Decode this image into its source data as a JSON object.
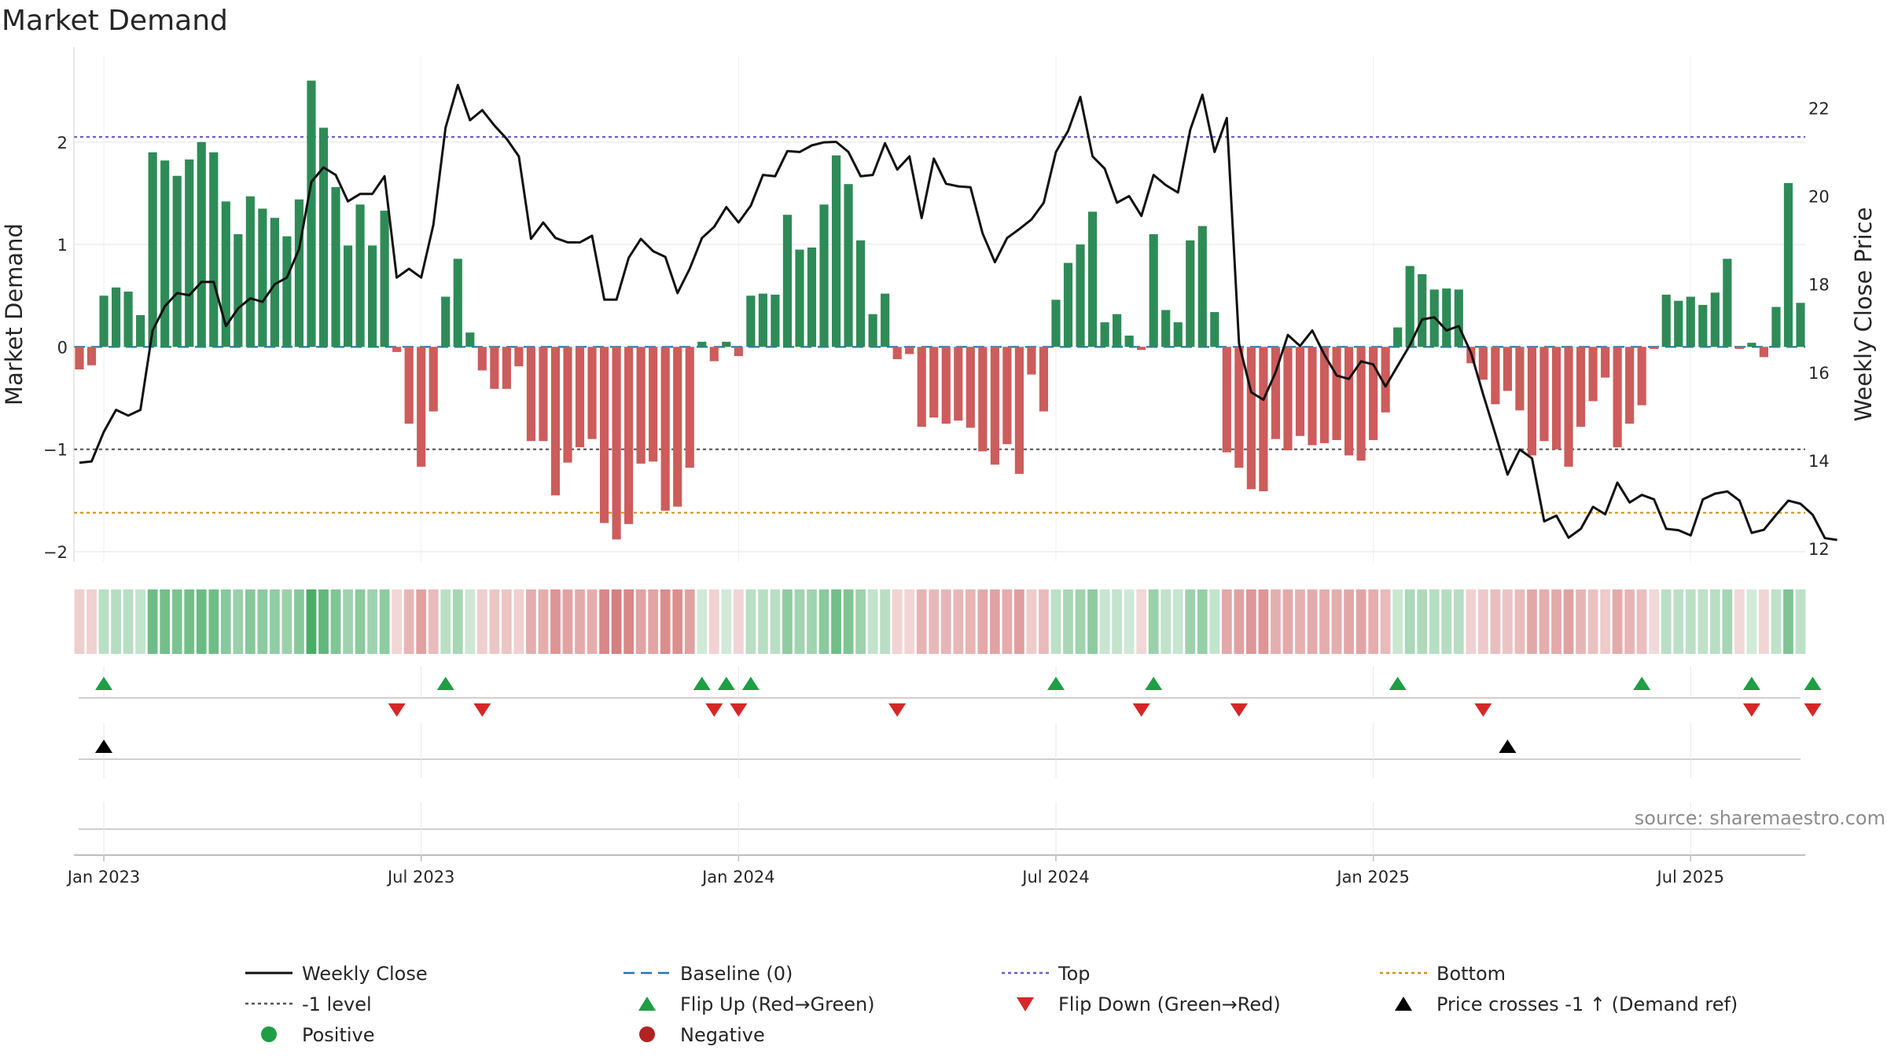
{
  "title": "Market Demand",
  "source": "source: sharemaestro.com",
  "colors": {
    "positive": "#2e8b57",
    "negative": "#cd5c5c",
    "close": "#111111",
    "baseline": "#1f77b4",
    "top": "#6a5acd",
    "minus1": "#555555",
    "bottom": "#d4900d",
    "flip_up": "#1e9e45",
    "flip_down": "#d62728",
    "cross": "#000000"
  },
  "chart_data": {
    "type": "bar+line",
    "title": "Market Demand",
    "ylabel": "Market Demand",
    "y2label": "Weekly Close Price",
    "ylim": [
      -2.1,
      2.85
    ],
    "y2lim": [
      11.7,
      23.2
    ],
    "yticks": [
      -2,
      -1,
      0,
      1,
      2
    ],
    "y2ticks": [
      12,
      14,
      16,
      18,
      20,
      22
    ],
    "x_tick_labels": [
      "Jan 2023",
      "Jul 2023",
      "Jan 2024",
      "Jul 2024",
      "Jan 2025",
      "Jul 2025"
    ],
    "x_tick_weeks": [
      2,
      28,
      54,
      80,
      106,
      132
    ],
    "reference_lines": {
      "top": 2.05,
      "minus_one": -1.0,
      "bottom": -1.62,
      "baseline": 0
    },
    "demand": [
      -0.22,
      -0.18,
      0.5,
      0.58,
      0.54,
      0.31,
      1.9,
      1.82,
      1.67,
      1.83,
      2.0,
      1.9,
      1.42,
      1.1,
      1.47,
      1.35,
      1.26,
      1.08,
      1.44,
      2.6,
      2.14,
      1.56,
      0.99,
      1.39,
      0.99,
      1.33,
      -0.05,
      -0.75,
      -1.17,
      -0.63,
      0.49,
      0.86,
      0.14,
      -0.23,
      -0.41,
      -0.41,
      -0.19,
      -0.92,
      -0.92,
      -1.45,
      -1.13,
      -0.98,
      -0.9,
      -1.72,
      -1.88,
      -1.73,
      -1.14,
      -1.12,
      -1.6,
      -1.56,
      -1.18,
      0.05,
      -0.14,
      0.05,
      -0.09,
      0.5,
      0.52,
      0.51,
      1.29,
      0.95,
      0.97,
      1.39,
      1.87,
      1.59,
      1.04,
      0.32,
      0.52,
      -0.12,
      -0.07,
      -0.78,
      -0.69,
      -0.75,
      -0.72,
      -0.79,
      -1.02,
      -1.15,
      -0.95,
      -1.24,
      -0.27,
      -0.63,
      0.46,
      0.82,
      1.0,
      1.32,
      0.24,
      0.32,
      0.11,
      -0.03,
      1.1,
      0.36,
      0.24,
      1.04,
      1.18,
      0.34,
      -1.03,
      -1.18,
      -1.39,
      -1.41,
      -0.9,
      -1.01,
      -0.87,
      -0.96,
      -0.94,
      -0.91,
      -1.06,
      -1.11,
      -0.91,
      -0.64,
      0.19,
      0.79,
      0.71,
      0.56,
      0.57,
      0.56,
      -0.16,
      -0.32,
      -0.56,
      -0.43,
      -0.62,
      -1.06,
      -0.92,
      -1.0,
      -1.17,
      -0.78,
      -0.53,
      -0.3,
      -0.98,
      -0.75,
      -0.57,
      -0.02,
      0.51,
      0.45,
      0.49,
      0.41,
      0.53,
      0.86,
      -0.02,
      0.04,
      -0.1,
      0.39,
      1.6,
      0.43
    ],
    "close": [
      13.95,
      13.98,
      14.65,
      15.15,
      15.02,
      15.15,
      16.95,
      17.5,
      17.8,
      17.75,
      18.05,
      18.05,
      17.05,
      17.45,
      17.68,
      17.6,
      18.0,
      18.15,
      18.8,
      20.32,
      20.65,
      20.48,
      19.88,
      20.05,
      20.05,
      20.45,
      18.15,
      18.35,
      18.15,
      19.35,
      21.55,
      22.52,
      21.72,
      21.95,
      21.6,
      21.3,
      20.9,
      19.03,
      19.4,
      19.05,
      18.95,
      18.95,
      19.1,
      17.65,
      17.65,
      18.6,
      19.03,
      18.75,
      18.62,
      17.8,
      18.35,
      19.05,
      19.3,
      19.75,
      19.4,
      19.78,
      20.48,
      20.45,
      21.02,
      21.0,
      21.15,
      21.22,
      21.23,
      21.0,
      20.45,
      20.48,
      21.2,
      20.6,
      20.9,
      19.5,
      20.85,
      20.28,
      20.22,
      20.2,
      19.15,
      18.5,
      19.05,
      19.25,
      19.47,
      19.85,
      21.0,
      21.48,
      22.25,
      20.9,
      20.62,
      19.85,
      20.0,
      19.55,
      20.48,
      20.25,
      20.08,
      21.5,
      22.3,
      21.0,
      21.77,
      16.65,
      15.55,
      15.38,
      16.0,
      16.85,
      16.6,
      16.95,
      16.4,
      15.93,
      15.85,
      16.25,
      16.18,
      15.68,
      16.15,
      16.62,
      17.2,
      17.25,
      16.95,
      17.05,
      16.45,
      15.5,
      14.6,
      13.68,
      14.25,
      14.05,
      12.62,
      12.75,
      12.25,
      12.45,
      12.95,
      12.78,
      13.5,
      13.05,
      13.22,
      13.12,
      12.45,
      12.42,
      12.3,
      13.12,
      13.25,
      13.3,
      13.09,
      12.36,
      12.43,
      12.77,
      13.09,
      13.02,
      12.77,
      12.24,
      12.2
    ],
    "flip_up_weeks": [
      2,
      30,
      51,
      53,
      55,
      80,
      88,
      108,
      128,
      137,
      142
    ],
    "flip_down_weeks": [
      26,
      33,
      52,
      54,
      67,
      87,
      95,
      115,
      137,
      142
    ],
    "price_cross_weeks": [
      2,
      117
    ],
    "legend": [
      {
        "label": "Weekly Close",
        "kind": "line-solid",
        "color": "#111111"
      },
      {
        "label": "Baseline (0)",
        "kind": "line-dash",
        "color": "#1f77b4"
      },
      {
        "label": "Top",
        "kind": "line-dot",
        "color": "#6a5acd"
      },
      {
        "label": "Bottom",
        "kind": "line-dot",
        "color": "#d4900d"
      },
      {
        "label": "-1 level",
        "kind": "line-dot",
        "color": "#555555"
      },
      {
        "label": "Flip Up (Red→Green)",
        "kind": "tri-up",
        "color": "#1e9e45"
      },
      {
        "label": "Flip Down (Green→Red)",
        "kind": "tri-down",
        "color": "#d62728"
      },
      {
        "label": "Price crosses -1 ↑ (Demand ref)",
        "kind": "tri-up",
        "color": "#000000"
      },
      {
        "label": "Positive",
        "kind": "dot",
        "color": "#1e9e45"
      },
      {
        "label": "Negative",
        "kind": "dot",
        "color": "#b22222"
      }
    ]
  }
}
